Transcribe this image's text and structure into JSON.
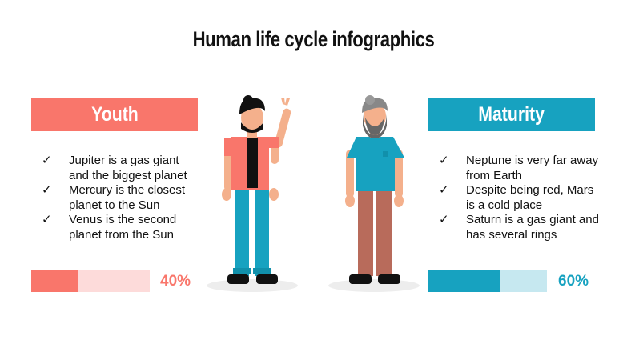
{
  "title": "Human life cycle infographics",
  "colors": {
    "youth": "#F9766B",
    "youth_light": "#FDDBDA",
    "maturity": "#17A2C0",
    "maturity_light": "#C6E8F0"
  },
  "youth": {
    "label": "Youth",
    "items": [
      "Jupiter is a gas giant and the biggest planet",
      "Mercury is the closest planet to the Sun",
      "Venus is the second planet from the Sun"
    ],
    "progress": 40,
    "progress_label": "40%"
  },
  "maturity": {
    "label": "Maturity",
    "items": [
      "Neptune is very far away from Earth",
      "Despite being red, Mars is a cold place",
      "Saturn is a gas giant and has several rings"
    ],
    "progress": 60,
    "progress_label": "60%"
  },
  "check_icon": "✓"
}
